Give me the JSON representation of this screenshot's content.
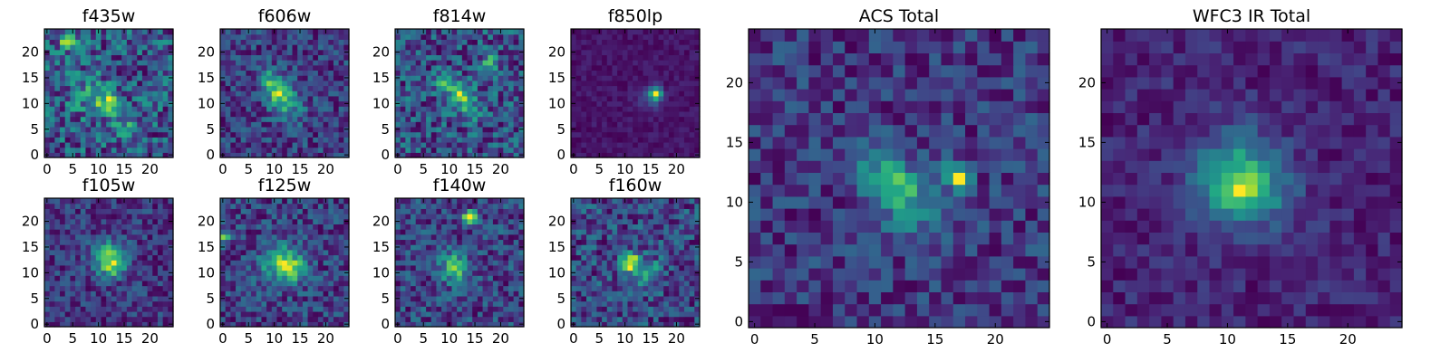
{
  "chart_data": [
    {
      "type": "heatmap",
      "title": "f435w",
      "xlim": [
        0,
        24
      ],
      "ylim": [
        0,
        24
      ],
      "xticks": [
        0,
        5,
        10,
        15,
        20
      ],
      "yticks": [
        0,
        5,
        10,
        15,
        20
      ],
      "grid": false,
      "colormap": "viridis",
      "blobs": [
        [
          12,
          10,
          1.5,
          0.55
        ],
        [
          4,
          22,
          1,
          0.6
        ],
        [
          15,
          5,
          1.5,
          0.3
        ],
        [
          8,
          12,
          3,
          0.2
        ]
      ],
      "base": 0.48,
      "noise": 0.28,
      "seed": 11
    },
    {
      "type": "heatmap",
      "title": "f606w",
      "xlim": [
        0,
        24
      ],
      "ylim": [
        0,
        24
      ],
      "xticks": [
        0,
        5,
        10,
        15,
        20
      ],
      "yticks": [
        0,
        5,
        10,
        15,
        20
      ],
      "grid": false,
      "colormap": "viridis",
      "blobs": [
        [
          11,
          12,
          1.8,
          0.55
        ],
        [
          9,
          15,
          1.5,
          0.35
        ],
        [
          13,
          9,
          2,
          0.25
        ]
      ],
      "base": 0.3,
      "noise": 0.18,
      "seed": 23
    },
    {
      "type": "heatmap",
      "title": "f814w",
      "xlim": [
        0,
        24
      ],
      "ylim": [
        0,
        24
      ],
      "xticks": [
        0,
        5,
        10,
        15,
        20
      ],
      "yticks": [
        0,
        5,
        10,
        15,
        20
      ],
      "grid": false,
      "colormap": "viridis",
      "blobs": [
        [
          12,
          12,
          1.5,
          0.5
        ],
        [
          9,
          14,
          1.2,
          0.35
        ],
        [
          14,
          9,
          1.5,
          0.35
        ],
        [
          18,
          18,
          1,
          0.5
        ]
      ],
      "base": 0.42,
      "noise": 0.24,
      "seed": 37
    },
    {
      "type": "heatmap",
      "title": "f850lp",
      "xlim": [
        0,
        24
      ],
      "ylim": [
        0,
        24
      ],
      "xticks": [
        0,
        5,
        10,
        15,
        20
      ],
      "yticks": [
        0,
        5,
        10,
        15,
        20
      ],
      "grid": false,
      "colormap": "viridis",
      "blobs": [
        [
          16,
          12,
          0.8,
          0.9
        ],
        [
          15,
          11,
          1.8,
          0.2
        ]
      ],
      "base": 0.07,
      "noise": 0.06,
      "seed": 41
    },
    {
      "type": "heatmap",
      "title": "f105w",
      "xlim": [
        0,
        24
      ],
      "ylim": [
        0,
        24
      ],
      "xticks": [
        0,
        5,
        10,
        15,
        20
      ],
      "yticks": [
        0,
        5,
        10,
        15,
        20
      ],
      "grid": false,
      "colormap": "viridis",
      "blobs": [
        [
          12,
          13,
          2.2,
          0.6
        ],
        [
          13,
          11,
          1.5,
          0.3
        ]
      ],
      "base": 0.3,
      "noise": 0.18,
      "seed": 53
    },
    {
      "type": "heatmap",
      "title": "f125w",
      "xlim": [
        0,
        24
      ],
      "ylim": [
        0,
        24
      ],
      "xticks": [
        0,
        5,
        10,
        15,
        20
      ],
      "yticks": [
        0,
        5,
        10,
        15,
        20
      ],
      "grid": false,
      "colormap": "viridis",
      "blobs": [
        [
          11,
          12,
          2.5,
          0.5
        ],
        [
          14,
          11,
          2,
          0.35
        ],
        [
          0,
          17,
          1,
          0.5
        ]
      ],
      "base": 0.38,
      "noise": 0.2,
      "seed": 67
    },
    {
      "type": "heatmap",
      "title": "f140w",
      "xlim": [
        0,
        24
      ],
      "ylim": [
        0,
        24
      ],
      "xticks": [
        0,
        5,
        10,
        15,
        20
      ],
      "yticks": [
        0,
        5,
        10,
        15,
        20
      ],
      "grid": false,
      "colormap": "viridis",
      "blobs": [
        [
          14,
          21,
          0.8,
          0.7
        ],
        [
          11,
          11,
          2,
          0.4
        ]
      ],
      "base": 0.3,
      "noise": 0.16,
      "seed": 71
    },
    {
      "type": "heatmap",
      "title": "f160w",
      "xlim": [
        0,
        24
      ],
      "ylim": [
        0,
        24
      ],
      "xticks": [
        0,
        5,
        10,
        15,
        20
      ],
      "yticks": [
        0,
        5,
        10,
        15,
        20
      ],
      "grid": false,
      "colormap": "viridis",
      "blobs": [
        [
          11,
          12,
          1.2,
          0.65
        ],
        [
          14,
          10,
          2,
          0.3
        ]
      ],
      "base": 0.28,
      "noise": 0.18,
      "seed": 83
    },
    {
      "type": "heatmap",
      "title": "ACS Total",
      "xlim": [
        0,
        24
      ],
      "ylim": [
        0,
        24
      ],
      "xticks": [
        0,
        5,
        10,
        15,
        20
      ],
      "yticks": [
        0,
        5,
        10,
        15,
        20
      ],
      "grid": false,
      "colormap": "viridis",
      "blobs": [
        [
          12,
          11,
          1.5,
          0.35
        ],
        [
          10,
          13,
          1.2,
          0.2
        ],
        [
          17,
          12,
          0.5,
          0.6
        ],
        [
          16,
          13,
          0.6,
          0.25
        ],
        [
          14,
          9,
          2,
          0.1
        ]
      ],
      "base": 0.3,
      "noise": 0.12,
      "seed": 97
    },
    {
      "type": "heatmap",
      "title": "WFC3 IR Total",
      "xlim": [
        0,
        24
      ],
      "ylim": [
        0,
        24
      ],
      "xticks": [
        0,
        5,
        10,
        15,
        20
      ],
      "yticks": [
        0,
        5,
        10,
        15,
        20
      ],
      "grid": false,
      "colormap": "viridis",
      "blobs": [
        [
          11,
          12,
          2.5,
          0.55
        ],
        [
          11,
          11,
          1,
          0.3
        ],
        [
          14,
          10,
          2,
          0.1
        ]
      ],
      "base": 0.18,
      "noise": 0.1,
      "seed": 101
    }
  ]
}
